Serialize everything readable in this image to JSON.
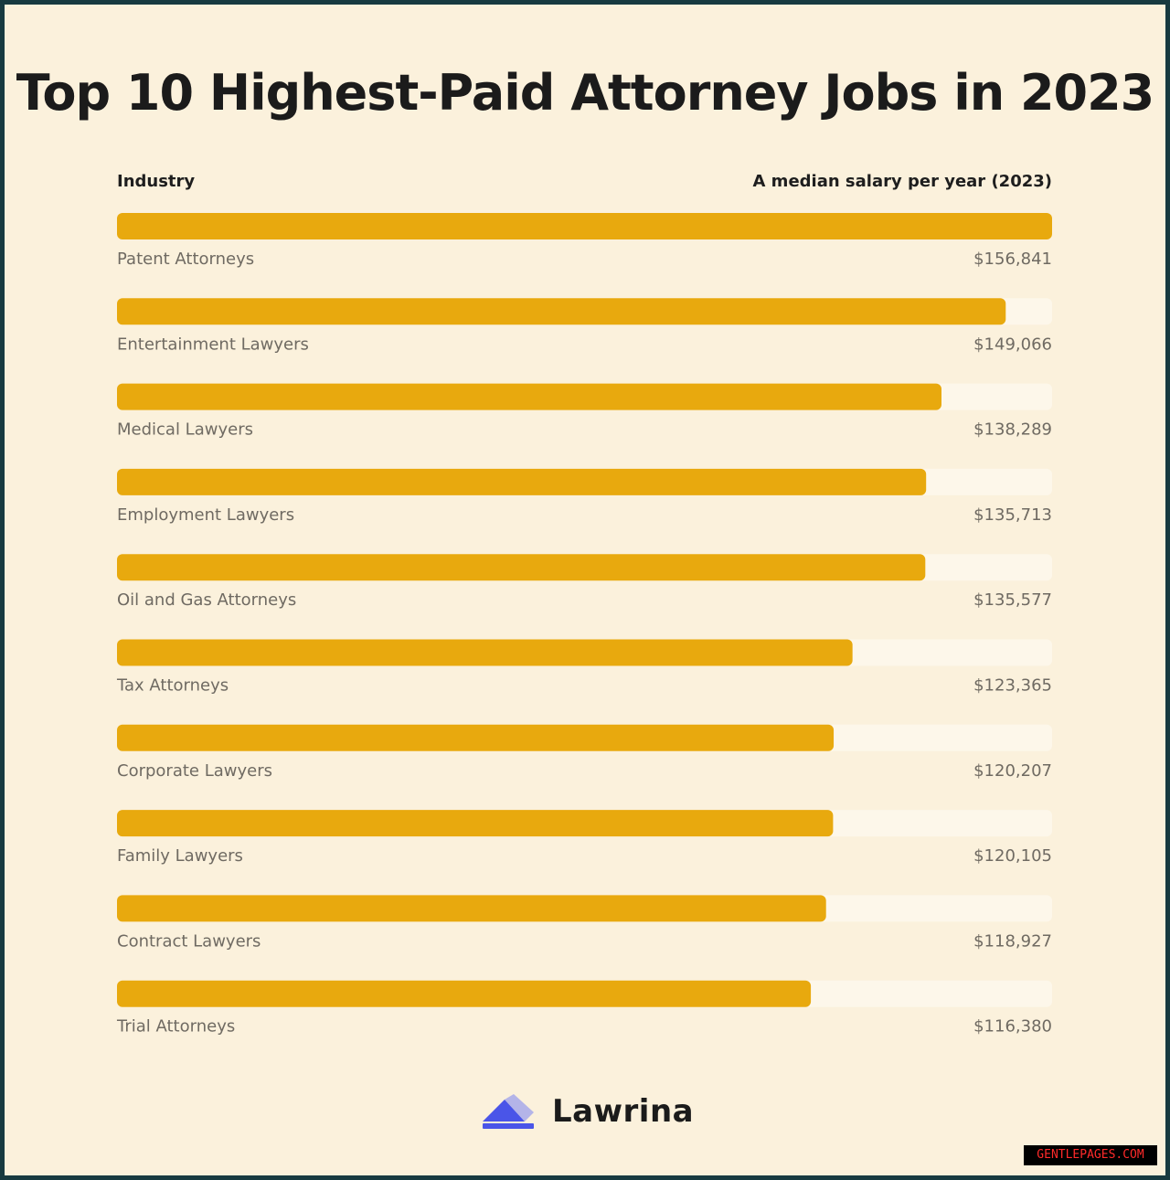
{
  "title": "Top 10 Highest-Paid Attorney Jobs in 2023",
  "header": {
    "left": "Industry",
    "right": "A median salary per year (2023)"
  },
  "chart_data": {
    "type": "bar",
    "orientation": "horizontal",
    "title": "Top 10 Highest-Paid Attorney Jobs in 2023",
    "categories": [
      "Patent Attorneys",
      "Entertainment Lawyers",
      "Medical Lawyers",
      "Employment Lawyers",
      "Oil and Gas Attorneys",
      "Tax Attorneys",
      "Corporate Lawyers",
      "Family Lawyers",
      "Contract Lawyers",
      "Trial Attorneys"
    ],
    "values": [
      156841,
      149066,
      138289,
      135713,
      135577,
      123365,
      120207,
      120105,
      118927,
      116380
    ],
    "value_labels": [
      "$156,841",
      "$149,066",
      "$138,289",
      "$135,713",
      "$135,577",
      "$123,365",
      "$120,207",
      "$120,105",
      "$118,927",
      "$116,380"
    ],
    "xlim": [
      0,
      156841
    ],
    "grid": false,
    "legend": "none",
    "bar_color": "#e8a90e",
    "track_color": "#fdf7ea"
  },
  "logo": {
    "text": "Lawrina",
    "icon": "lawrina-logo-icon",
    "color": "#4a55e8"
  },
  "watermark": "GENTLEPAGES.COM",
  "colors": {
    "frame": "#173a40",
    "background": "#fbf1dc",
    "title": "#1b1b1b"
  }
}
